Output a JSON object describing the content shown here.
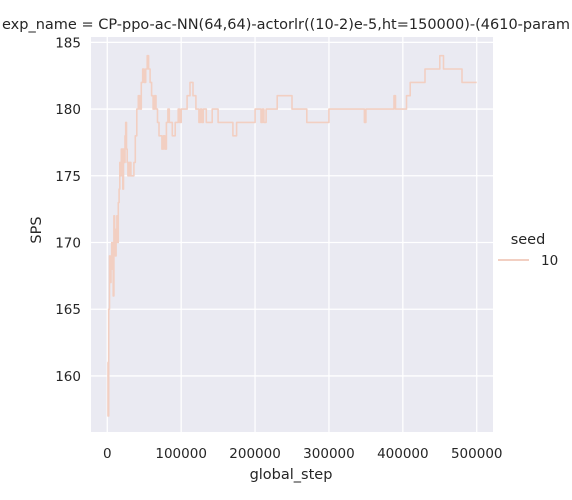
{
  "chart_data": {
    "type": "line",
    "title": "exp_name = CP-ppo-ac-NN(64,64)-actorlr((10-2)e-5,ht=150000)-(4610-param",
    "xlabel": "global_step",
    "ylabel": "SPS",
    "xlim": [
      -22000,
      522000
    ],
    "ylim": [
      155.8,
      185.4
    ],
    "xticks": [
      0,
      100000,
      200000,
      300000,
      400000,
      500000
    ],
    "xtick_labels": [
      "0",
      "100000",
      "200000",
      "300000",
      "400000",
      "500000"
    ],
    "yticks": [
      160,
      165,
      170,
      175,
      180,
      185
    ],
    "ytick_labels": [
      "160",
      "165",
      "170",
      "175",
      "180",
      "185"
    ],
    "grid": true,
    "legend": {
      "title": "seed",
      "placement": "right"
    },
    "series": [
      {
        "name": "10",
        "color": "#f2cfc2",
        "x": [
          0,
          1000,
          2000,
          3000,
          4000,
          5000,
          6000,
          7000,
          8000,
          9000,
          10000,
          11000,
          12000,
          13000,
          14000,
          15000,
          16000,
          17000,
          18000,
          19000,
          20000,
          21000,
          22000,
          23000,
          24000,
          25000,
          26000,
          27000,
          28000,
          29000,
          30000,
          31000,
          32000,
          34000,
          36000,
          38000,
          40000,
          42000,
          44000,
          46000,
          48000,
          50000,
          52000,
          54000,
          56000,
          58000,
          60000,
          62000,
          64000,
          66000,
          68000,
          70000,
          72000,
          74000,
          76000,
          78000,
          80000,
          82000,
          84000,
          86000,
          88000,
          90000,
          92000,
          94000,
          96000,
          98000,
          100000,
          104000,
          108000,
          112000,
          116000,
          120000,
          122000,
          124000,
          126000,
          128000,
          130000,
          134000,
          138000,
          142000,
          146000,
          150000,
          160000,
          170000,
          175000,
          180000,
          190000,
          200000,
          205000,
          208000,
          210000,
          212000,
          215000,
          220000,
          230000,
          235000,
          240000,
          250000,
          255000,
          260000,
          270000,
          275000,
          300000,
          320000,
          340000,
          348000,
          350000,
          352000,
          360000,
          380000,
          388000,
          390000,
          392000,
          400000,
          405000,
          410000,
          420000,
          430000,
          445000,
          450000,
          455000,
          460000,
          470000,
          480000,
          485000,
          490000,
          500000
        ],
        "values": [
          161,
          157,
          165,
          169,
          167,
          168,
          170,
          168,
          166,
          172,
          170,
          169,
          171,
          172,
          170,
          173,
          174,
          176,
          175,
          177,
          177,
          174,
          177,
          176,
          178,
          179,
          177,
          176,
          175,
          176,
          175,
          176,
          175,
          175,
          176,
          178,
          180,
          181,
          180,
          182,
          183,
          182,
          183,
          184,
          183,
          182,
          181,
          180,
          181,
          180,
          179,
          178,
          178,
          177,
          178,
          177,
          179,
          180,
          179,
          179,
          178,
          178,
          179,
          179,
          180,
          179,
          180,
          180,
          181,
          182,
          181,
          180,
          180,
          179,
          180,
          179,
          180,
          179,
          179,
          180,
          180,
          179,
          179,
          178,
          179,
          179,
          179,
          180,
          180,
          179,
          180,
          179,
          180,
          180,
          181,
          181,
          181,
          180,
          180,
          180,
          179,
          179,
          180,
          180,
          180,
          179,
          180,
          180,
          180,
          180,
          181,
          180,
          180,
          180,
          181,
          182,
          182,
          183,
          183,
          184,
          183,
          183,
          183,
          182,
          182,
          182,
          182
        ]
      }
    ]
  }
}
